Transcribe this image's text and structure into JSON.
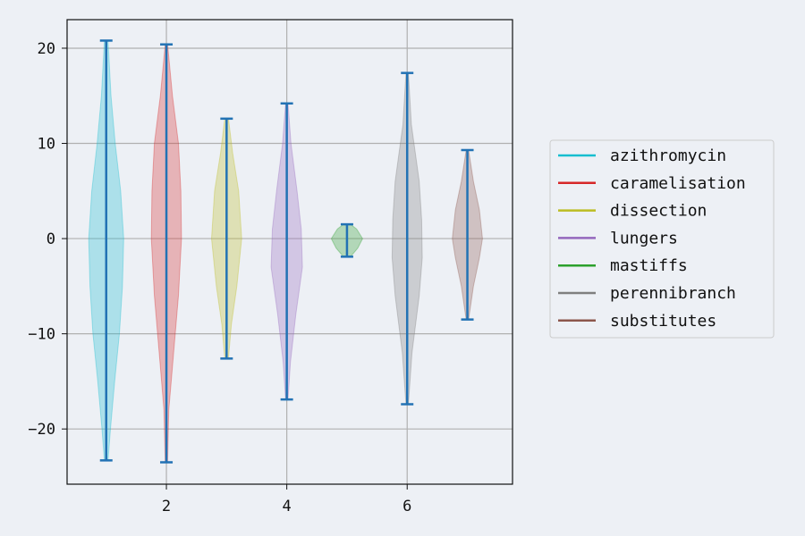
{
  "chart_data": {
    "type": "violin",
    "title": "",
    "xlabel": "",
    "ylabel": "",
    "xlim": [
      0.35,
      7.75
    ],
    "ylim": [
      -25.8,
      23
    ],
    "x_ticks": [
      2,
      4,
      6
    ],
    "y_ticks": [
      20,
      10,
      0,
      -10,
      -20
    ],
    "grid": true,
    "legend_position": "right",
    "whisker_color": "#2272b4",
    "series": [
      {
        "name": "azithromycin",
        "x": 1,
        "min": -23.3,
        "max": 20.8,
        "color": "#17becf",
        "profile": [
          [
            -23.3,
            0.03
          ],
          [
            -20,
            0.07
          ],
          [
            -15,
            0.14
          ],
          [
            -10,
            0.22
          ],
          [
            -5,
            0.27
          ],
          [
            0,
            0.29
          ],
          [
            5,
            0.24
          ],
          [
            10,
            0.15
          ],
          [
            15,
            0.08
          ],
          [
            20.8,
            0.03
          ]
        ]
      },
      {
        "name": "caramelisation",
        "x": 2,
        "min": -23.5,
        "max": 20.4,
        "color": "#d62728",
        "profile": [
          [
            -23.5,
            0.02
          ],
          [
            -18,
            0.04
          ],
          [
            -12,
            0.12
          ],
          [
            -6,
            0.2
          ],
          [
            0,
            0.25
          ],
          [
            5,
            0.24
          ],
          [
            10,
            0.2
          ],
          [
            15,
            0.1
          ],
          [
            20.4,
            0.02
          ]
        ]
      },
      {
        "name": "dissection",
        "x": 3,
        "min": -12.6,
        "max": 12.6,
        "color": "#bcbd22",
        "profile": [
          [
            -12.6,
            0.03
          ],
          [
            -9,
            0.08
          ],
          [
            -5,
            0.17
          ],
          [
            0,
            0.25
          ],
          [
            5,
            0.2
          ],
          [
            9,
            0.1
          ],
          [
            12.6,
            0.03
          ]
        ]
      },
      {
        "name": "lungers",
        "x": 4,
        "min": -16.9,
        "max": 14.2,
        "color": "#9467bd",
        "profile": [
          [
            -16.9,
            0.02
          ],
          [
            -13,
            0.06
          ],
          [
            -8,
            0.15
          ],
          [
            -3,
            0.26
          ],
          [
            1,
            0.24
          ],
          [
            5,
            0.17
          ],
          [
            10,
            0.07
          ],
          [
            14.2,
            0.02
          ]
        ]
      },
      {
        "name": "mastiffs",
        "x": 5,
        "min": -1.9,
        "max": 1.5,
        "color": "#2ca02c",
        "profile": [
          [
            -1.9,
            0.06
          ],
          [
            -1,
            0.18
          ],
          [
            0,
            0.26
          ],
          [
            1,
            0.16
          ],
          [
            1.5,
            0.06
          ]
        ]
      },
      {
        "name": "perennibranch",
        "x": 6,
        "min": -17.4,
        "max": 17.4,
        "color": "#7f7f7f",
        "profile": [
          [
            -17.4,
            0.02
          ],
          [
            -12,
            0.08
          ],
          [
            -6,
            0.2
          ],
          [
            -2,
            0.25
          ],
          [
            2,
            0.24
          ],
          [
            6,
            0.2
          ],
          [
            12,
            0.07
          ],
          [
            17.4,
            0.02
          ]
        ]
      },
      {
        "name": "substitutes",
        "x": 7,
        "min": -8.5,
        "max": 9.3,
        "color": "#8c564b",
        "profile": [
          [
            -8.5,
            0.02
          ],
          [
            -5,
            0.1
          ],
          [
            -2,
            0.2
          ],
          [
            0,
            0.25
          ],
          [
            3,
            0.2
          ],
          [
            6,
            0.1
          ],
          [
            9.3,
            0.02
          ]
        ]
      }
    ]
  }
}
